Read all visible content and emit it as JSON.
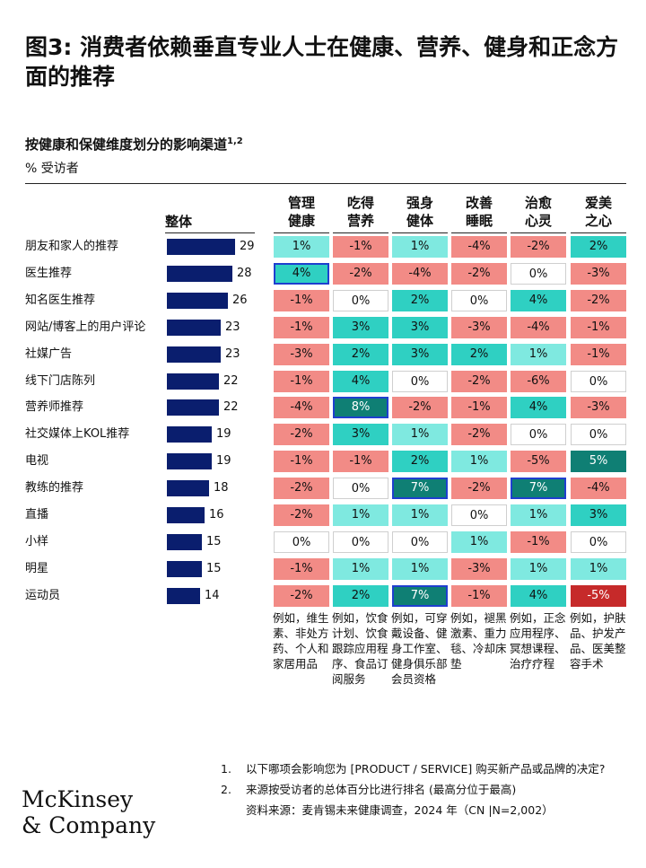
{
  "title": "图3: 消费者依赖垂直专业人士在健康、营养、健身和正念方面的推荐",
  "subtitle": "按健康和保健维度划分的影响渠道",
  "subtitle_sup": "1,2",
  "unit": "% 受访者",
  "overall_header": "整体",
  "columns": [
    {
      "line1": "管理",
      "line2": "健康",
      "example": "例如，维生素、非处方药、个人和家居用品"
    },
    {
      "line1": "吃得",
      "line2": "营养",
      "example": "例如，饮食计划、饮食跟踪应用程序、食品订阅服务"
    },
    {
      "line1": "强身",
      "line2": "健体",
      "example": "例如，可穿戴设备、健身工作室、健身俱乐部会员资格"
    },
    {
      "line1": "改善",
      "line2": "睡眠",
      "example": "例如，褪黑激素、重力毯、冷却床垫"
    },
    {
      "line1": "治愈",
      "line2": "心灵",
      "example": "例如，正念应用程序、冥想课程、治疗疗程"
    },
    {
      "line1": "爱美",
      "line2": "之心",
      "example": "例如，护肤品、护发产品、医美整容手术"
    }
  ],
  "chart_data": {
    "type": "table",
    "title": "按健康和保健维度划分的影响渠道",
    "ylabel": "% 受访者",
    "categories": [
      "朋友和家人的推荐",
      "医生推荐",
      "知名医生推荐",
      "网站/博客上的用户评论",
      "社媒广告",
      "线下门店陈列",
      "营养师推荐",
      "社交媒体上KOL推荐",
      "电视",
      "教练的推荐",
      "直播",
      "小样",
      "明星",
      "运动员"
    ],
    "overall": [
      29,
      28,
      26,
      23,
      23,
      22,
      22,
      19,
      19,
      18,
      16,
      15,
      15,
      14
    ],
    "overall_xlim": [
      0,
      29
    ],
    "series": [
      {
        "name": "管理健康",
        "values": [
          1,
          4,
          -1,
          -1,
          -3,
          -1,
          -4,
          -2,
          -1,
          -2,
          -2,
          0,
          -1,
          -2
        ]
      },
      {
        "name": "吃得营养",
        "values": [
          -1,
          -2,
          0,
          3,
          2,
          4,
          8,
          3,
          -1,
          0,
          1,
          0,
          1,
          2
        ]
      },
      {
        "name": "强身健体",
        "values": [
          1,
          -4,
          2,
          3,
          3,
          0,
          -2,
          1,
          2,
          7,
          1,
          0,
          1,
          7
        ]
      },
      {
        "name": "改善睡眠",
        "values": [
          -4,
          -2,
          0,
          -3,
          2,
          -2,
          -1,
          -2,
          1,
          -2,
          0,
          1,
          -3,
          -1
        ]
      },
      {
        "name": "治愈心灵",
        "values": [
          -2,
          0,
          4,
          -4,
          1,
          -6,
          4,
          0,
          -5,
          7,
          1,
          -1,
          1,
          4
        ]
      },
      {
        "name": "爱美之心",
        "values": [
          2,
          -3,
          -2,
          -1,
          -1,
          0,
          -3,
          0,
          5,
          -4,
          3,
          0,
          1,
          -5
        ]
      }
    ],
    "highlighted": [
      [
        1,
        0
      ],
      [
        6,
        1
      ],
      [
        9,
        2
      ],
      [
        13,
        2
      ],
      [
        9,
        4
      ]
    ]
  },
  "notes": [
    {
      "num": "1.",
      "text": "以下哪项会影响您为 [PRODUCT / SERVICE] 购买新产品或品牌的决定?"
    },
    {
      "num": "2.",
      "text": "来源按受访者的总体百分比进行排名 (最高分位于最高)"
    }
  ],
  "source": "资料来源：麦肯锡未来健康调查，2024 年（CN |N=2,002）",
  "logo_line1": "McKinsey",
  "logo_line2": "& Company",
  "colors": {
    "bar": "#0a1e6e",
    "neg_light": "#f28b86",
    "neg_strong": "#c62a2a",
    "neutral": "#ffffff",
    "pos_light": "#7fe9e0",
    "pos_mid": "#2fd0c2",
    "pos_strong": "#0f7f74",
    "highlight_border": "#1f3fcf"
  }
}
